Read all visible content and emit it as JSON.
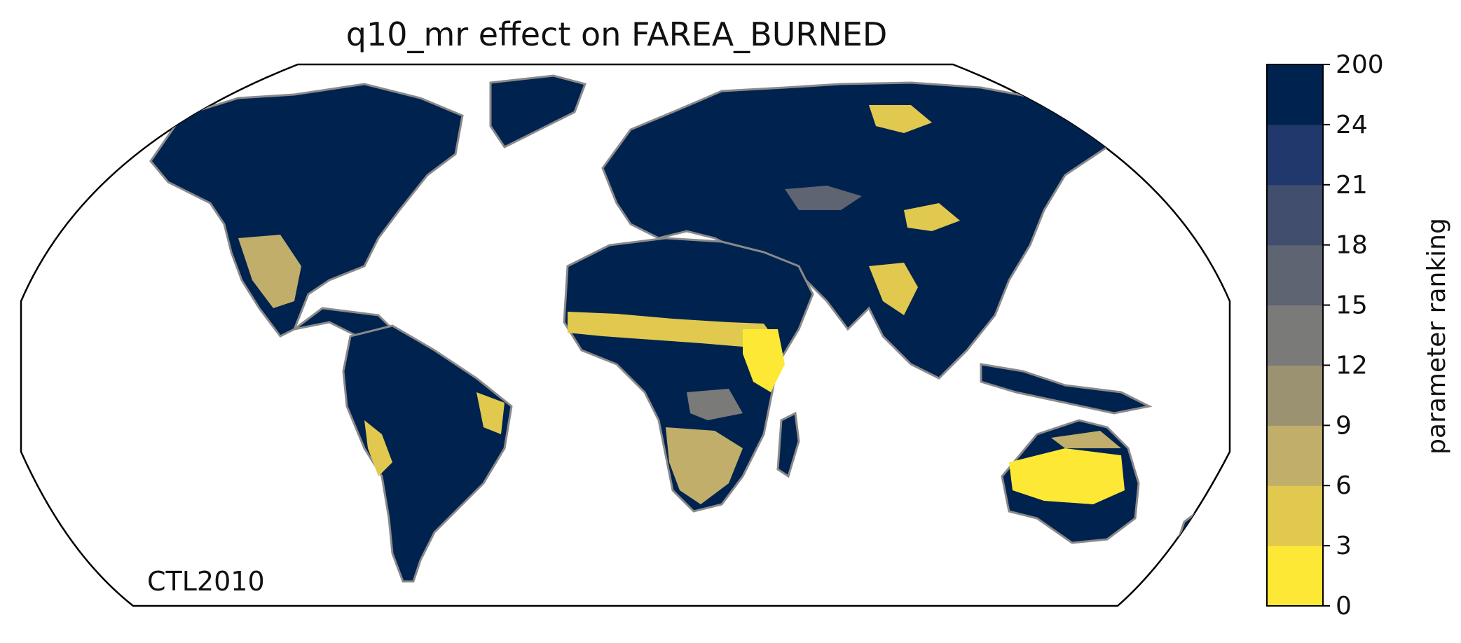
{
  "title": "q10_mr effect on FAREA_BURNED",
  "annotation": "CTL2010",
  "colorbar": {
    "label": "parameter ranking",
    "ticks": [
      "0",
      "3",
      "6",
      "9",
      "12",
      "15",
      "18",
      "21",
      "24",
      "200"
    ],
    "colors": [
      "#fde835",
      "#e0c94e",
      "#c0ae6a",
      "#9b9271",
      "#7a7a78",
      "#5e6471",
      "#414e6d",
      "#21386c",
      "#00224e"
    ]
  },
  "map": {
    "projection": "Robinson",
    "ocean_color": "#ffffff",
    "coastline_color": "#8a8a8a",
    "dominant_color": "#00224e",
    "regions": [
      {
        "name": "North America",
        "rank_class": "24-200"
      },
      {
        "name": "Greenland",
        "rank_class": "24-200"
      },
      {
        "name": "South America",
        "rank_class": "24-200"
      },
      {
        "name": "Europe",
        "rank_class": "24-200"
      },
      {
        "name": "Asia",
        "rank_class": "24-200"
      },
      {
        "name": "Africa",
        "rank_class": "24-200"
      },
      {
        "name": "Australia",
        "rank_class": "6-9"
      },
      {
        "name": "Sahel",
        "rank_class": "0-6"
      },
      {
        "name": "India",
        "rank_class": "0-6"
      },
      {
        "name": "Southern Africa",
        "rank_class": "6-12"
      },
      {
        "name": "Mexico",
        "rank_class": "6-12"
      }
    ]
  }
}
